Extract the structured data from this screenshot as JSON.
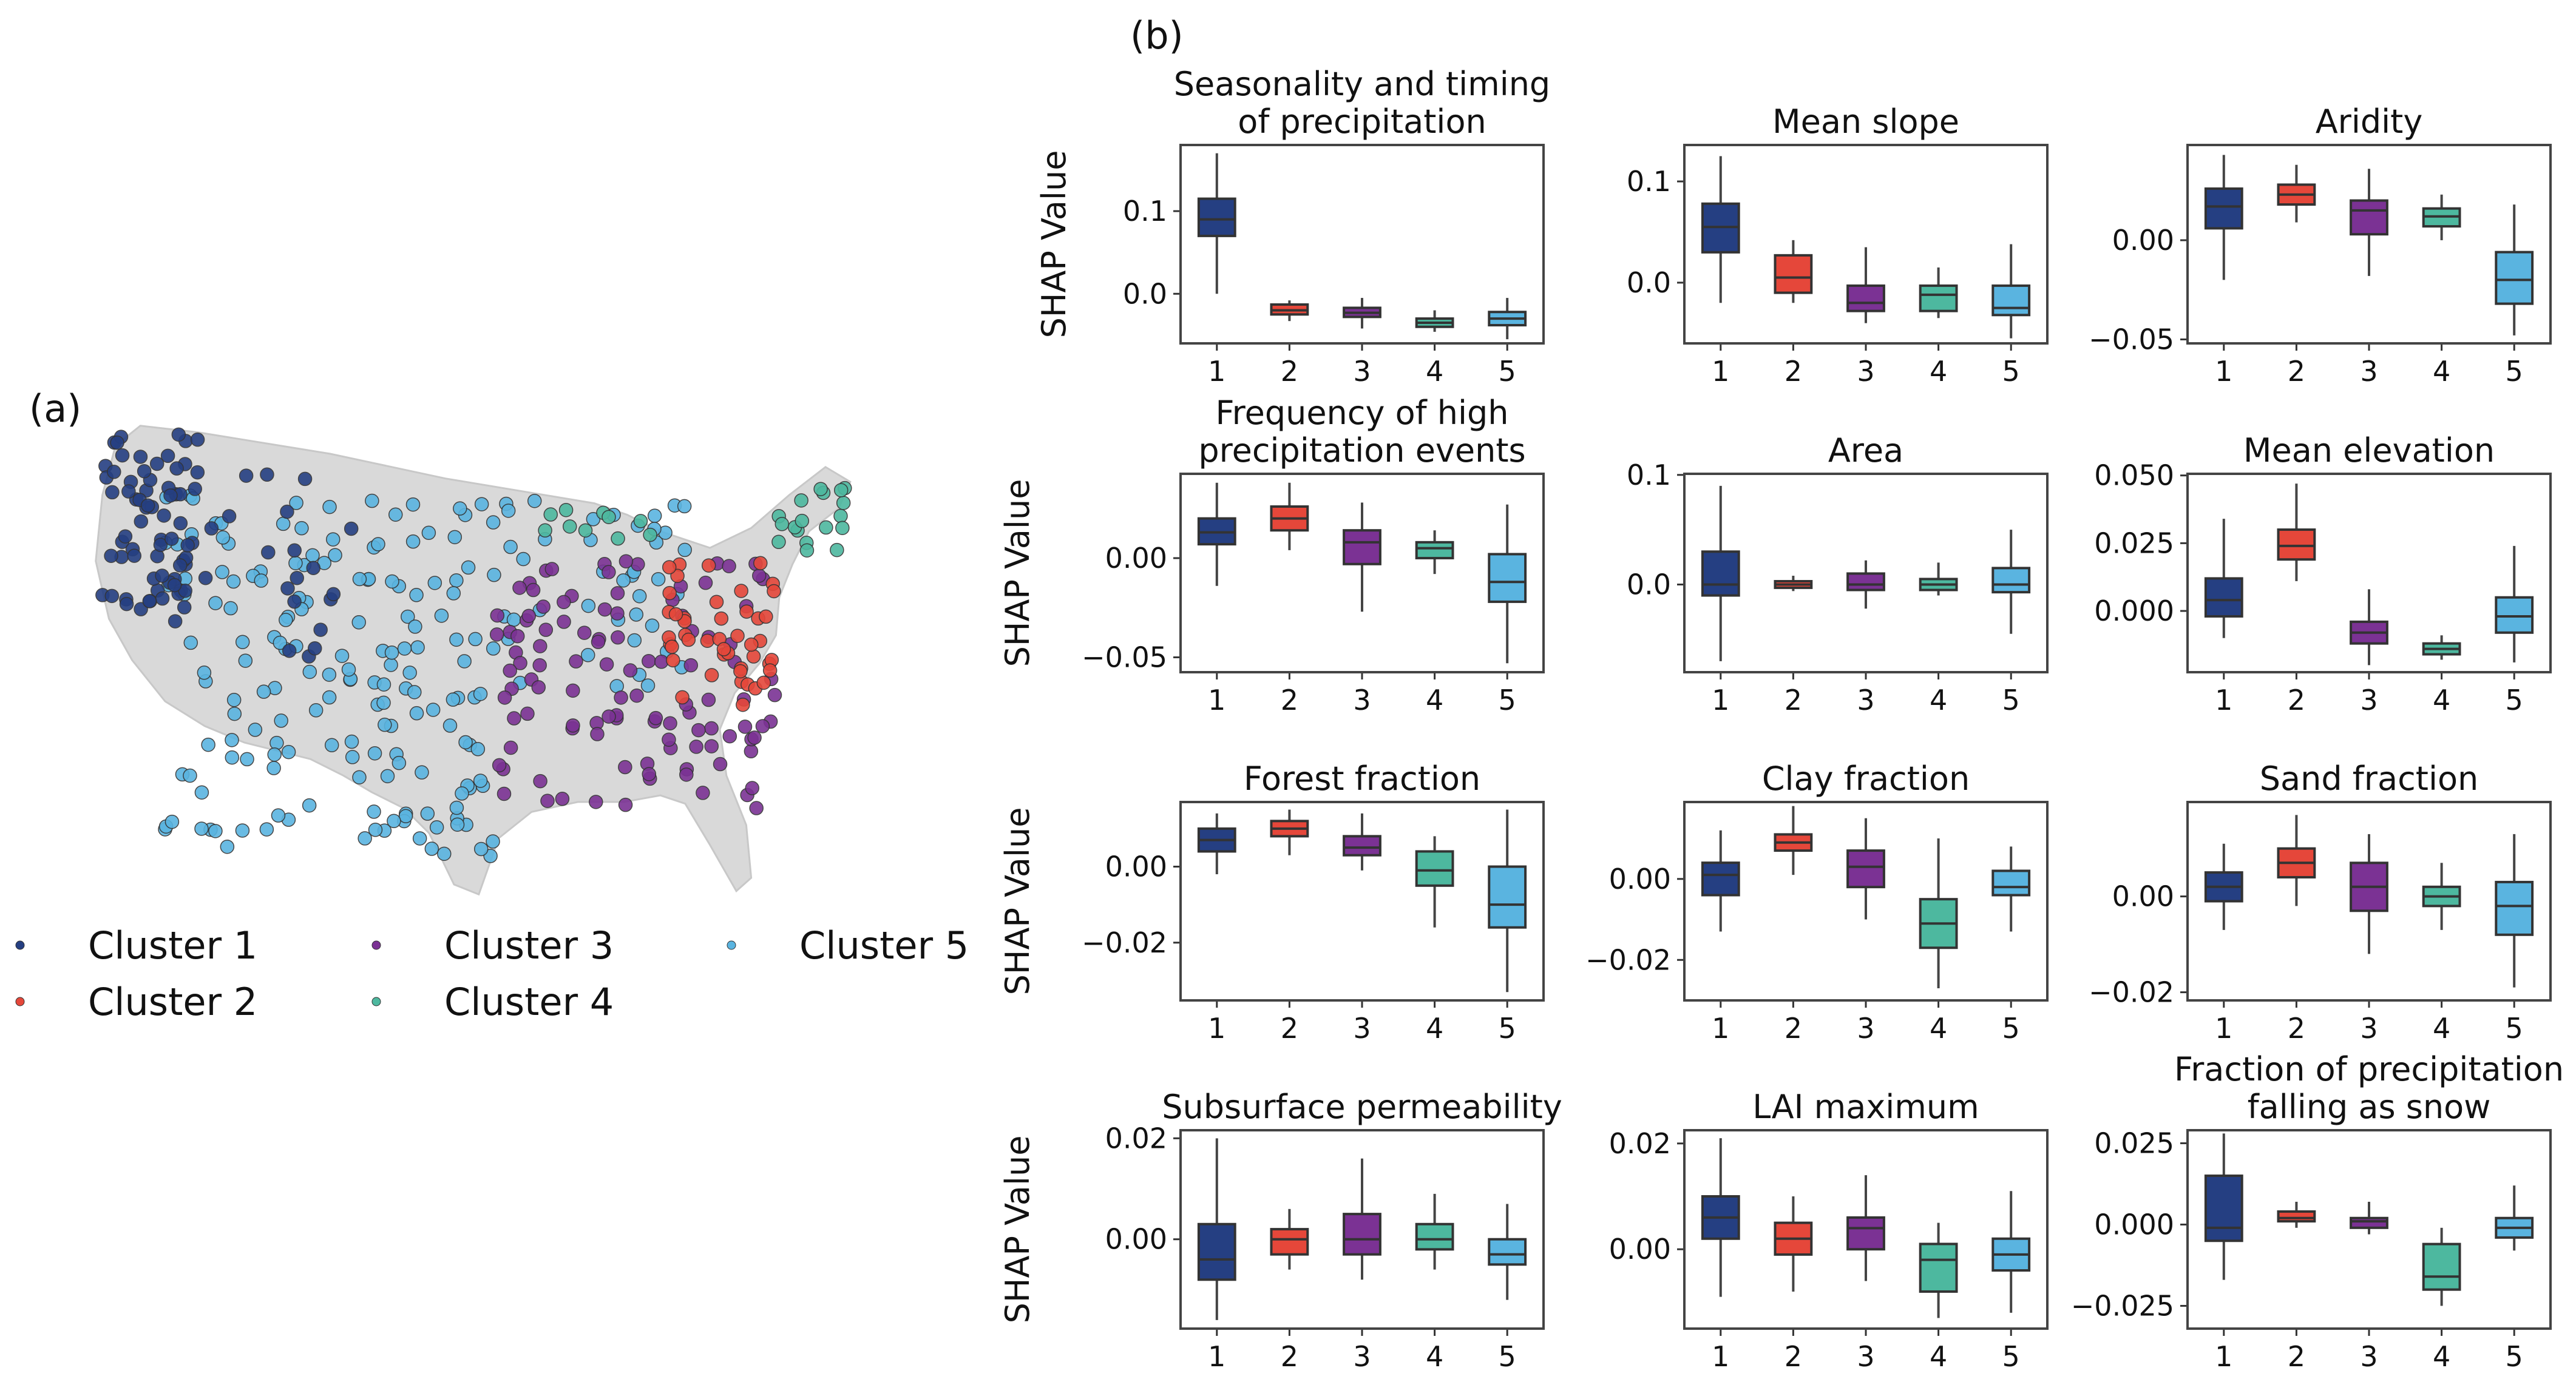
{
  "panel_a_label": "(a)",
  "panel_b_label": "(b)",
  "colors": {
    "1": "#253f82",
    "2": "#e5473a",
    "3": "#7b3294",
    "4": "#4db89f",
    "5": "#5ab4e0"
  },
  "map": {
    "legend": [
      {
        "cluster": "1",
        "label": "Cluster 1"
      },
      {
        "cluster": "2",
        "label": "Cluster 2"
      },
      {
        "cluster": "3",
        "label": "Cluster 3"
      },
      {
        "cluster": "4",
        "label": "Cluster 4"
      },
      {
        "cluster": "5",
        "label": "Cluster 5"
      }
    ]
  },
  "chart_data": [
    {
      "type": "box",
      "title": "Seasonality and timing\nof precipitation",
      "ylabel": "SHAP Value",
      "categories": [
        "1",
        "2",
        "3",
        "4",
        "5"
      ],
      "ylim": [
        -0.06,
        0.18
      ],
      "yticks": [
        0.0,
        0.1
      ],
      "yticklabels": [
        "0.0",
        "0.1"
      ],
      "boxes": [
        [
          0.0,
          0.07,
          0.09,
          0.115,
          0.17
        ],
        [
          -0.033,
          -0.025,
          -0.02,
          -0.013,
          -0.008
        ],
        [
          -0.042,
          -0.028,
          -0.023,
          -0.017,
          -0.005
        ],
        [
          -0.046,
          -0.04,
          -0.035,
          -0.03,
          -0.02
        ],
        [
          -0.055,
          -0.038,
          -0.03,
          -0.022,
          -0.005
        ]
      ]
    },
    {
      "type": "box",
      "title": "Mean slope",
      "ylabel": "",
      "categories": [
        "1",
        "2",
        "3",
        "4",
        "5"
      ],
      "ylim": [
        -0.06,
        0.136
      ],
      "yticks": [
        0.0,
        0.1
      ],
      "yticklabels": [
        "0.0",
        "0.1"
      ],
      "boxes": [
        [
          -0.02,
          0.03,
          0.055,
          0.078,
          0.125
        ],
        [
          -0.02,
          -0.01,
          0.005,
          0.027,
          0.042
        ],
        [
          -0.04,
          -0.028,
          -0.02,
          -0.003,
          0.035
        ],
        [
          -0.035,
          -0.028,
          -0.012,
          -0.003,
          0.015
        ],
        [
          -0.055,
          -0.032,
          -0.025,
          -0.003,
          0.038
        ]
      ]
    },
    {
      "type": "box",
      "title": "Aridity",
      "ylabel": "",
      "categories": [
        "1",
        "2",
        "3",
        "4",
        "5"
      ],
      "ylim": [
        -0.052,
        0.048
      ],
      "yticks": [
        -0.05,
        0.0
      ],
      "yticklabels": [
        "−0.05",
        "0.00"
      ],
      "boxes": [
        [
          -0.02,
          0.006,
          0.017,
          0.026,
          0.043
        ],
        [
          0.009,
          0.018,
          0.023,
          0.028,
          0.038
        ],
        [
          -0.018,
          0.003,
          0.015,
          0.02,
          0.036
        ],
        [
          0.0,
          0.007,
          0.012,
          0.016,
          0.023
        ],
        [
          -0.048,
          -0.032,
          -0.02,
          -0.006,
          0.018
        ]
      ]
    },
    {
      "type": "box",
      "title": "Frequency of high\nprecipitation events",
      "ylabel": "SHAP Value",
      "categories": [
        "1",
        "2",
        "3",
        "4",
        "5"
      ],
      "ylim": [
        -0.0575,
        0.0425
      ],
      "yticks": [
        -0.05,
        0.0
      ],
      "yticklabels": [
        "−0.05",
        "0.00"
      ],
      "boxes": [
        [
          -0.014,
          0.007,
          0.013,
          0.02,
          0.038
        ],
        [
          0.004,
          0.014,
          0.02,
          0.026,
          0.038
        ],
        [
          -0.027,
          -0.003,
          0.008,
          0.014,
          0.028
        ],
        [
          -0.008,
          0.0,
          0.005,
          0.008,
          0.014
        ],
        [
          -0.053,
          -0.022,
          -0.012,
          0.002,
          0.027
        ]
      ]
    },
    {
      "type": "box",
      "title": "Area",
      "ylabel": "",
      "categories": [
        "1",
        "2",
        "3",
        "4",
        "5"
      ],
      "ylim": [
        -0.08,
        0.101
      ],
      "yticks": [
        0.0,
        0.1
      ],
      "yticklabels": [
        "0.0",
        "0.1"
      ],
      "boxes": [
        [
          -0.07,
          -0.01,
          0.0,
          0.03,
          0.09
        ],
        [
          -0.006,
          -0.003,
          0.0,
          0.003,
          0.008
        ],
        [
          -0.022,
          -0.005,
          0.0,
          0.01,
          0.022
        ],
        [
          -0.01,
          -0.005,
          0.0,
          0.005,
          0.02
        ],
        [
          -0.045,
          -0.007,
          0.0,
          0.015,
          0.05
        ]
      ]
    },
    {
      "type": "box",
      "title": "Mean elevation",
      "ylabel": "",
      "categories": [
        "1",
        "2",
        "3",
        "4",
        "5"
      ],
      "ylim": [
        -0.0226,
        0.0506
      ],
      "yticks": [
        0.0,
        0.025,
        0.05
      ],
      "yticklabels": [
        "0.000",
        "0.025",
        "0.050"
      ],
      "boxes": [
        [
          -0.01,
          -0.002,
          0.004,
          0.012,
          0.034
        ],
        [
          0.011,
          0.019,
          0.024,
          0.03,
          0.047
        ],
        [
          -0.02,
          -0.012,
          -0.008,
          -0.004,
          0.008
        ],
        [
          -0.018,
          -0.016,
          -0.014,
          -0.012,
          -0.009
        ],
        [
          -0.019,
          -0.008,
          -0.002,
          0.005,
          0.024
        ]
      ]
    },
    {
      "type": "box",
      "title": "Forest fraction",
      "ylabel": "SHAP Value",
      "categories": [
        "1",
        "2",
        "3",
        "4",
        "5"
      ],
      "ylim": [
        -0.0352,
        0.017
      ],
      "yticks": [
        -0.02,
        0.0
      ],
      "yticklabels": [
        "−0.02",
        "0.00"
      ],
      "boxes": [
        [
          -0.002,
          0.004,
          0.007,
          0.01,
          0.014
        ],
        [
          0.003,
          0.008,
          0.01,
          0.012,
          0.015
        ],
        [
          -0.001,
          0.003,
          0.005,
          0.008,
          0.014
        ],
        [
          -0.016,
          -0.005,
          -0.001,
          0.004,
          0.008
        ],
        [
          -0.033,
          -0.016,
          -0.01,
          0.0,
          0.015
        ]
      ]
    },
    {
      "type": "box",
      "title": "Clay fraction",
      "ylabel": "",
      "categories": [
        "1",
        "2",
        "3",
        "4",
        "5"
      ],
      "ylim": [
        -0.03,
        0.019
      ],
      "yticks": [
        -0.02,
        0.0
      ],
      "yticklabels": [
        "−0.02",
        "0.00"
      ],
      "boxes": [
        [
          -0.013,
          -0.004,
          0.001,
          0.004,
          0.012
        ],
        [
          0.001,
          0.007,
          0.009,
          0.011,
          0.018
        ],
        [
          -0.01,
          -0.002,
          0.003,
          0.007,
          0.015
        ],
        [
          -0.027,
          -0.017,
          -0.011,
          -0.005,
          0.01
        ],
        [
          -0.013,
          -0.004,
          -0.002,
          0.002,
          0.008
        ]
      ]
    },
    {
      "type": "box",
      "title": "Sand fraction",
      "ylabel": "",
      "categories": [
        "1",
        "2",
        "3",
        "4",
        "5"
      ],
      "ylim": [
        -0.0217,
        0.0197
      ],
      "yticks": [
        -0.02,
        0.0
      ],
      "yticklabels": [
        "−0.02",
        "0.00"
      ],
      "boxes": [
        [
          -0.007,
          -0.001,
          0.002,
          0.005,
          0.011
        ],
        [
          -0.002,
          0.004,
          0.007,
          0.01,
          0.017
        ],
        [
          -0.012,
          -0.003,
          0.002,
          0.007,
          0.013
        ],
        [
          -0.007,
          -0.002,
          0.0,
          0.002,
          0.007
        ],
        [
          -0.019,
          -0.008,
          -0.002,
          0.003,
          0.013
        ]
      ]
    },
    {
      "type": "box",
      "title": "Subsurface permeability",
      "ylabel": "SHAP Value",
      "categories": [
        "1",
        "2",
        "3",
        "4",
        "5"
      ],
      "ylim": [
        -0.0177,
        0.0216
      ],
      "yticks": [
        0.0,
        0.02
      ],
      "yticklabels": [
        "0.00",
        "0.02"
      ],
      "boxes": [
        [
          -0.016,
          -0.008,
          -0.004,
          0.003,
          0.02
        ],
        [
          -0.006,
          -0.003,
          0.0,
          0.002,
          0.006
        ],
        [
          -0.008,
          -0.003,
          0.0,
          0.005,
          0.016
        ],
        [
          -0.006,
          -0.002,
          0.0,
          0.003,
          0.009
        ],
        [
          -0.012,
          -0.005,
          -0.003,
          0.0,
          0.007
        ]
      ]
    },
    {
      "type": "box",
      "title": "LAI maximum",
      "ylabel": "",
      "categories": [
        "1",
        "2",
        "3",
        "4",
        "5"
      ],
      "ylim": [
        -0.015,
        0.0225
      ],
      "yticks": [
        0.0,
        0.02
      ],
      "yticklabels": [
        "0.00",
        "0.02"
      ],
      "boxes": [
        [
          -0.009,
          0.002,
          0.006,
          0.01,
          0.021
        ],
        [
          -0.008,
          -0.001,
          0.002,
          0.005,
          0.01
        ],
        [
          -0.006,
          0.0,
          0.004,
          0.006,
          0.014
        ],
        [
          -0.013,
          -0.008,
          -0.002,
          0.001,
          0.005
        ],
        [
          -0.012,
          -0.004,
          -0.001,
          0.002,
          0.011
        ]
      ]
    },
    {
      "type": "box",
      "title": "Fraction of precipitation\nfalling as snow",
      "ylabel": "",
      "categories": [
        "1",
        "2",
        "3",
        "4",
        "5"
      ],
      "ylim": [
        -0.032,
        0.029
      ],
      "yticks": [
        -0.025,
        0.0,
        0.025
      ],
      "yticklabels": [
        "−0.025",
        "0.000",
        "0.025"
      ],
      "boxes": [
        [
          -0.017,
          -0.005,
          -0.001,
          0.015,
          0.028
        ],
        [
          -0.001,
          0.001,
          0.002,
          0.004,
          0.007
        ],
        [
          -0.003,
          -0.001,
          0.001,
          0.002,
          0.007
        ],
        [
          -0.025,
          -0.02,
          -0.016,
          -0.006,
          -0.001
        ],
        [
          -0.008,
          -0.004,
          -0.001,
          0.002,
          0.012
        ]
      ]
    }
  ]
}
